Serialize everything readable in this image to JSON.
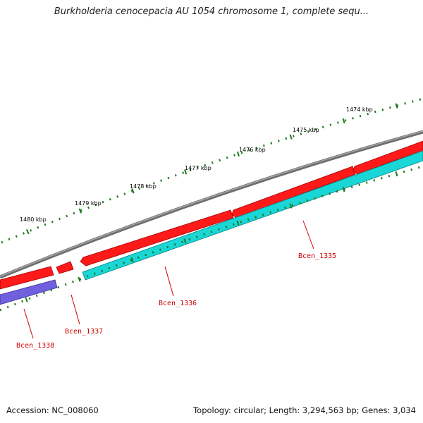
{
  "title": "Burkholderia cenocepacia AU 1054 chromosome 1, complete sequ...",
  "colors": {
    "chromosome_backbone": "#808080",
    "forward_gene": "#ff0000",
    "reverse_gene": "#00cccc",
    "other_gene": "#6655cc",
    "ticks": "#1a7a1a",
    "gene_label": "#cc0000"
  },
  "scale": {
    "unit_labels": [
      "1474 kbp",
      "1475 kbp",
      "1476 kbp",
      "1477 kbp",
      "1478 kbp",
      "1479 kbp",
      "1480 kbp"
    ]
  },
  "genes": [
    {
      "label": "Bcen_1335"
    },
    {
      "label": "Bcen_1336"
    },
    {
      "label": "Bcen_1337"
    },
    {
      "label": "Bcen_1338"
    }
  ],
  "footer": {
    "accession": "Accession: NC_008060",
    "summary": "Topology: circular; Length: 3,294,563 bp; Genes: 3,034"
  }
}
